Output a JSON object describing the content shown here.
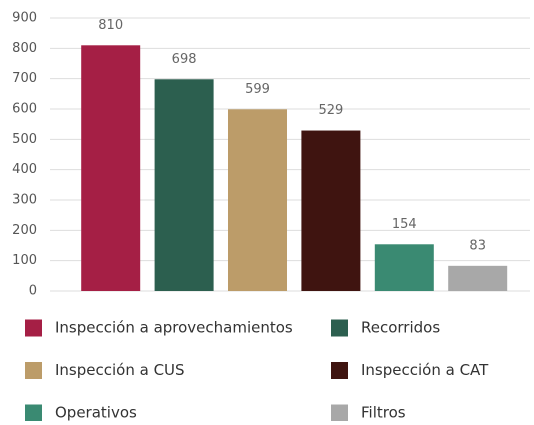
{
  "chart_data": {
    "type": "bar",
    "series": [
      {
        "name": "Inspección a aprovechamientos",
        "color": "#a51f45",
        "values": [
          810
        ]
      },
      {
        "name": "Recorridos",
        "color": "#2c5f4f",
        "values": [
          698
        ]
      },
      {
        "name": "Inspección a CUS",
        "color": "#bc9c69",
        "values": [
          599
        ]
      },
      {
        "name": "Inspección a CAT",
        "color": "#3f1410",
        "values": [
          529
        ]
      },
      {
        "name": "Operativos",
        "color": "#3a8a72",
        "values": [
          154
        ]
      },
      {
        "name": "Filtros",
        "color": "#a8a8a8",
        "values": [
          83
        ]
      }
    ],
    "ylim": [
      0,
      900
    ],
    "yticks": [
      0,
      100,
      200,
      300,
      400,
      500,
      600,
      700,
      800,
      900
    ],
    "grid": true,
    "legend": "bottom"
  }
}
